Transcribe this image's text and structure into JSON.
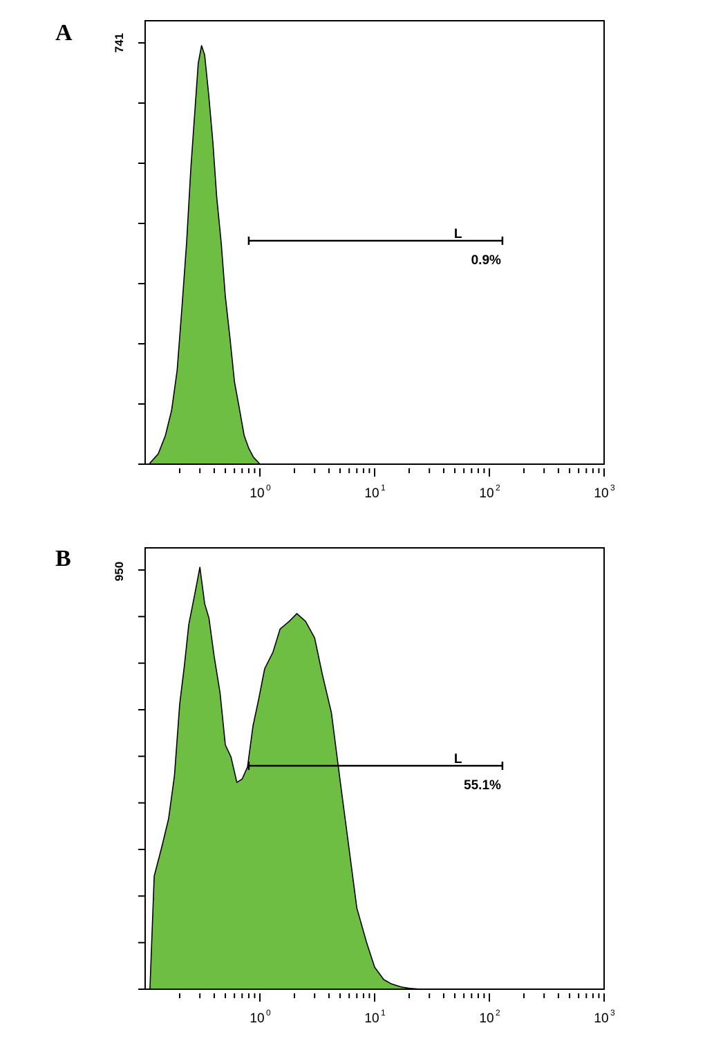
{
  "chart_data": [
    {
      "type": "area",
      "panel_label": "A",
      "x_scale": "log",
      "xlim": [
        0.1,
        1000
      ],
      "x_ticks": [
        {
          "base": "10",
          "exp": "0"
        },
        {
          "base": "10",
          "exp": "1"
        },
        {
          "base": "10",
          "exp": "2"
        },
        {
          "base": "10",
          "exp": "3"
        }
      ],
      "ylim": [
        0,
        741
      ],
      "y_max_label": "741",
      "y_major_ticks": 7,
      "fill_color": "#6ebe44",
      "line_color": "#000000",
      "series": [
        {
          "x": [
            0.11,
            0.13,
            0.15,
            0.17,
            0.19,
            0.21,
            0.23,
            0.25,
            0.27,
            0.29,
            0.31,
            0.33,
            0.36,
            0.39,
            0.42,
            0.46,
            0.5,
            0.55,
            0.6,
            0.66,
            0.73,
            0.8,
            0.88,
            0.95,
            1.0
          ],
          "y": [
            2,
            18,
            50,
            90,
            170,
            275,
            395,
            515,
            620,
            700,
            741,
            715,
            650,
            560,
            475,
            385,
            300,
            215,
            150,
            95,
            55,
            28,
            12,
            5,
            0
          ]
        }
      ],
      "gate": {
        "label": "L",
        "from": 0.8,
        "to": 130,
        "percent": "0.9%"
      }
    },
    {
      "type": "area",
      "panel_label": "B",
      "x_scale": "log",
      "xlim": [
        0.1,
        1000
      ],
      "x_ticks": [
        {
          "base": "10",
          "exp": "0"
        },
        {
          "base": "10",
          "exp": "1"
        },
        {
          "base": "10",
          "exp": "2"
        },
        {
          "base": "10",
          "exp": "3"
        }
      ],
      "ylim": [
        0,
        950
      ],
      "y_max_label": "950",
      "y_major_ticks": 9,
      "fill_color": "#6ebe44",
      "line_color": "#000000",
      "series": [
        {
          "x": [
            0.11,
            0.12,
            0.14,
            0.16,
            0.18,
            0.2,
            0.22,
            0.24,
            0.27,
            0.3,
            0.33,
            0.36,
            0.4,
            0.45,
            0.5,
            0.56,
            0.63,
            0.7,
            0.78,
            0.87,
            0.97,
            1.1,
            1.3,
            1.5,
            1.8,
            2.1,
            2.5,
            3.0,
            3.5,
            4.2,
            5.0,
            6.0,
            7.0,
            8.5,
            10,
            12,
            14,
            17,
            20,
            25
          ],
          "y": [
            0,
            250,
            330,
            380,
            490,
            640,
            740,
            820,
            900,
            950,
            880,
            835,
            760,
            665,
            560,
            520,
            475,
            470,
            510,
            590,
            660,
            720,
            770,
            810,
            840,
            845,
            840,
            790,
            720,
            620,
            480,
            310,
            190,
            100,
            50,
            22,
            12,
            5,
            2,
            0
          ]
        }
      ],
      "gate": {
        "label": "L",
        "from": 0.8,
        "to": 130,
        "percent": "55.1%"
      }
    }
  ]
}
